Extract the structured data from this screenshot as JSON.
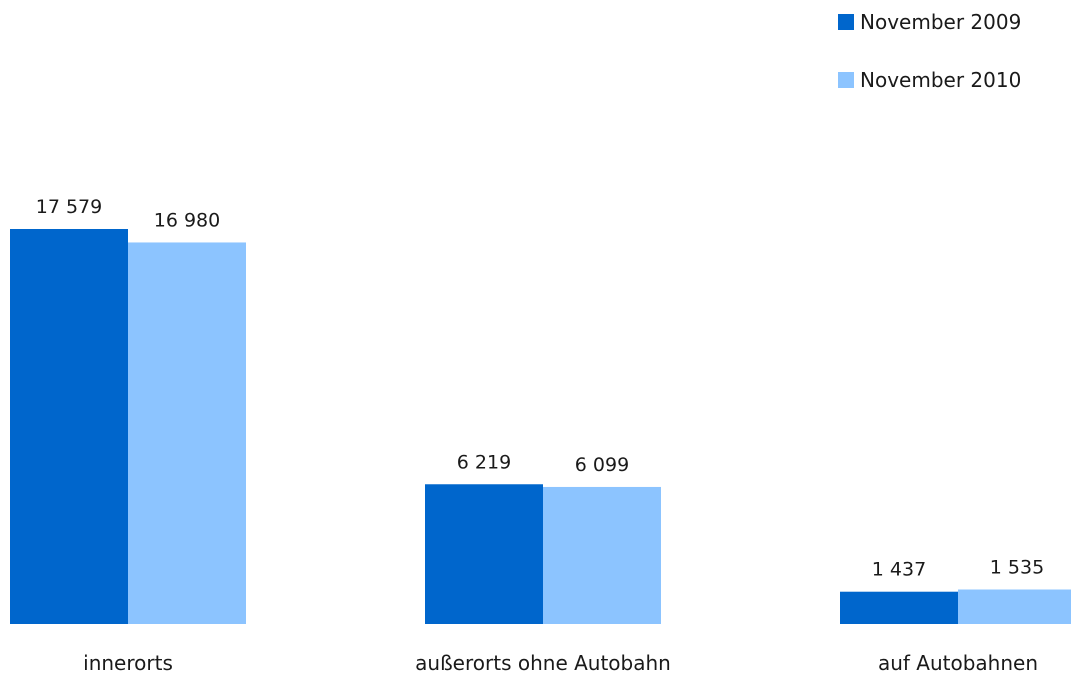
{
  "chart_data": {
    "type": "bar",
    "categories": [
      "innerorts",
      "außerorts ohne Autobahn",
      "auf Autobahnen"
    ],
    "series": [
      {
        "name": "November 2009",
        "values": [
          17579,
          6219,
          1437
        ],
        "value_labels": [
          "17 579",
          "6 219",
          "1 437"
        ],
        "color": "#0066cc"
      },
      {
        "name": "November 2010",
        "values": [
          16980,
          6099,
          1535
        ],
        "value_labels": [
          "16 980",
          "6 099",
          "1 535"
        ],
        "color": "#8cc4ff"
      }
    ],
    "ylim": [
      0,
      17579
    ],
    "grid": false,
    "legend_position": "top-right"
  }
}
